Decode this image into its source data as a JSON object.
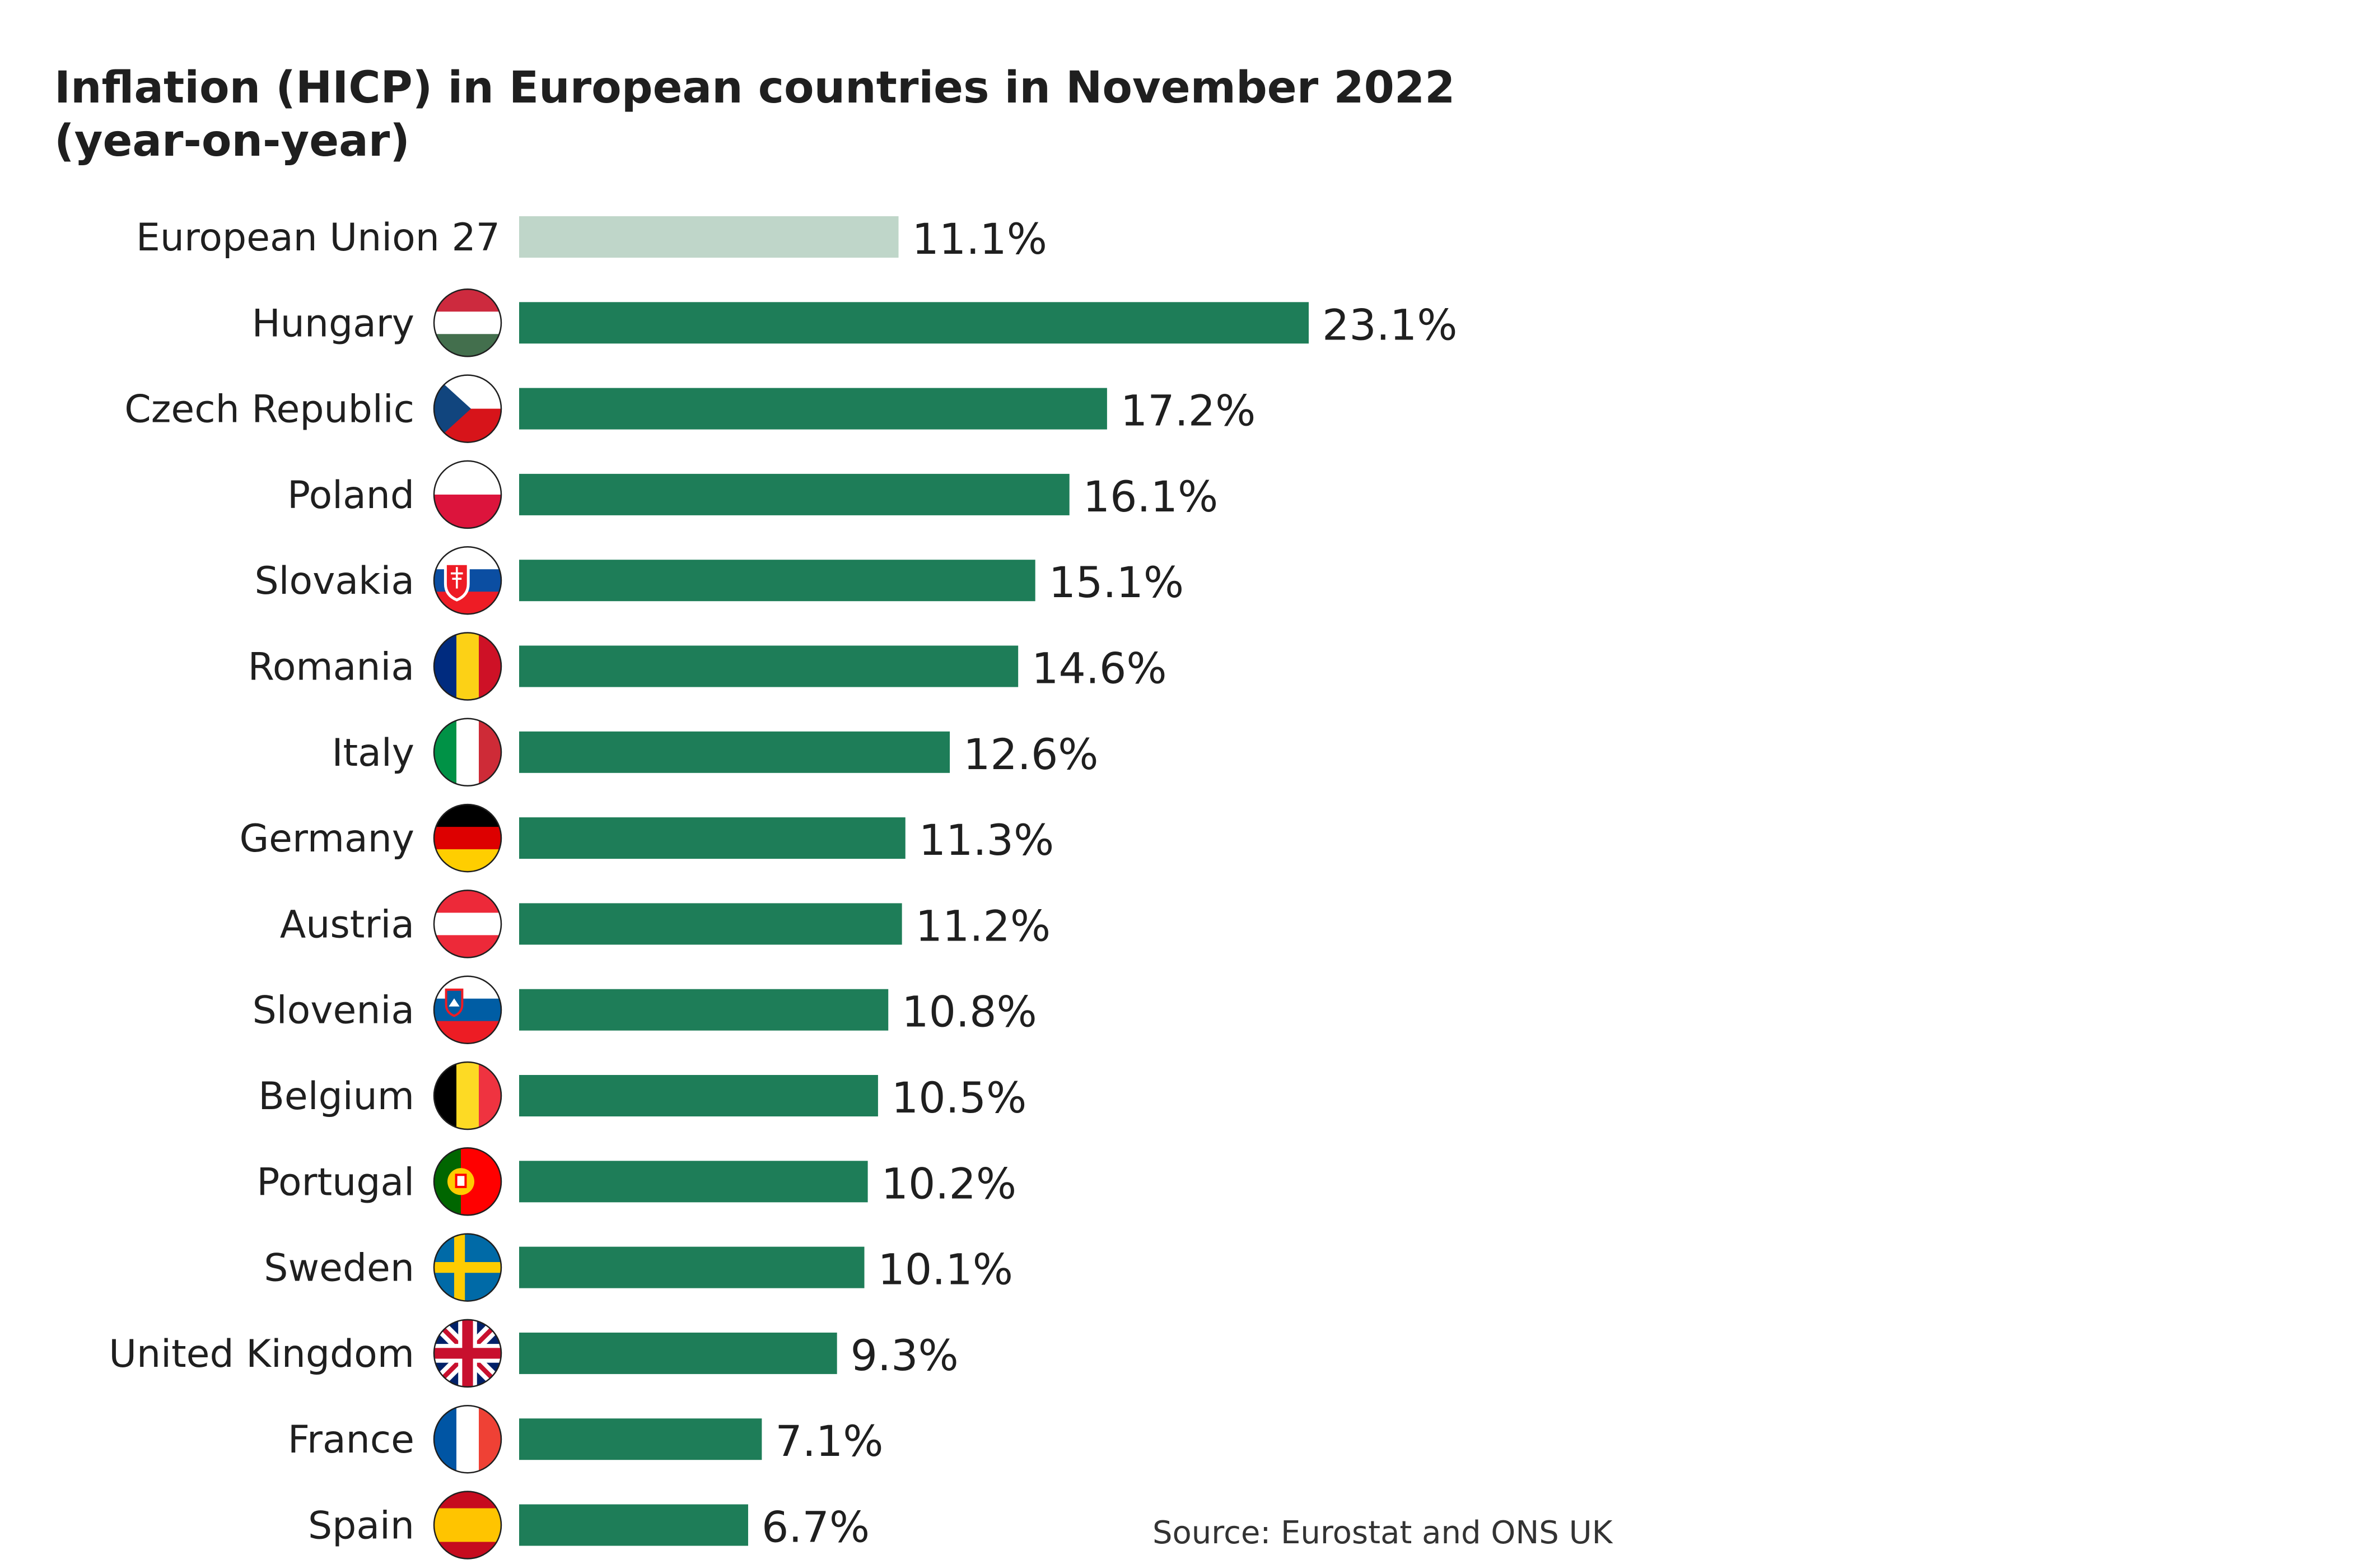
{
  "chart_data": {
    "type": "bar",
    "orientation": "horizontal",
    "title": "Inflation (HICP) in European countries in November 2022",
    "subtitle": "(year-on-year)",
    "xlabel": "",
    "ylabel": "",
    "xlim": [
      0,
      25
    ],
    "grid": false,
    "unit": "%",
    "categories": [
      "European Union 27",
      "Hungary",
      "Czech Republic",
      "Poland",
      "Slovakia",
      "Romania",
      "Italy",
      "Germany",
      "Austria",
      "Slovenia",
      "Belgium",
      "Portugal",
      "Sweden",
      "United Kingdom",
      "France",
      "Spain"
    ],
    "values": [
      11.1,
      23.1,
      17.2,
      16.1,
      15.1,
      14.6,
      12.6,
      11.3,
      11.2,
      10.8,
      10.5,
      10.2,
      10.1,
      9.3,
      7.1,
      6.7
    ],
    "value_labels": [
      "11.1%",
      "23.1%",
      "17.2%",
      "16.1%",
      "15.1%",
      "14.6%",
      "12.6%",
      "11.3%",
      "11.2%",
      "10.8%",
      "10.5%",
      "10.2%",
      "10.1%",
      "9.3%",
      "7.1%",
      "6.7%"
    ],
    "flags": [
      "",
      "hungary-flag-icon",
      "czech-republic-flag-icon",
      "poland-flag-icon",
      "slovakia-flag-icon",
      "romania-flag-icon",
      "italy-flag-icon",
      "germany-flag-icon",
      "austria-flag-icon",
      "slovenia-flag-icon",
      "belgium-flag-icon",
      "portugal-flag-icon",
      "sweden-flag-icon",
      "united-kingdom-flag-icon",
      "france-flag-icon",
      "spain-flag-icon"
    ],
    "source": "Source: Eurostat and ONS UK",
    "colors": {
      "bar": "#1e7d58",
      "highlight_bar": "#bfd6c9",
      "text": "#1f1f1f"
    }
  }
}
